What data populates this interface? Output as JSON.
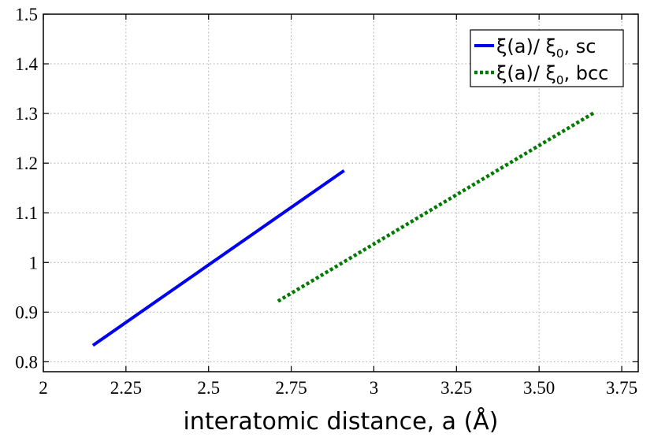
{
  "chart_data": {
    "type": "line",
    "xlabel": "interatomic distance, a (Å)",
    "ylabel": "",
    "xlim": [
      2,
      3.8
    ],
    "ylim": [
      0.78,
      1.5
    ],
    "x_ticks": [
      2,
      2.25,
      2.5,
      2.75,
      3,
      3.25,
      3.5,
      3.75
    ],
    "x_tick_labels": [
      "2",
      "2.25",
      "2.5",
      "2.75",
      "3",
      "3.25",
      "3.50",
      "3.75"
    ],
    "y_ticks": [
      0.8,
      0.9,
      1.0,
      1.1,
      1.2,
      1.3,
      1.4,
      1.5
    ],
    "y_tick_labels": [
      "0.8",
      "0.9",
      "1",
      "1.1",
      "1.2",
      "1.3",
      "1.4",
      "1.5"
    ],
    "grid": true,
    "legend_position": "top-right",
    "series": [
      {
        "name": "ξ(a)/ ξ0, sc",
        "legend_main": "ξ(a)/ ξ",
        "legend_sub": "0",
        "legend_tail": ", sc",
        "color": "#0000ee",
        "style": "solid",
        "x": [
          2.15,
          2.91
        ],
        "y": [
          0.833,
          1.185
        ]
      },
      {
        "name": "ξ(a)/ ξ0, bcc",
        "legend_main": "ξ(a)/ ξ",
        "legend_sub": "0",
        "legend_tail": ", bcc",
        "color": "#007a00",
        "style": "dotted",
        "x": [
          2.71,
          3.67
        ],
        "y": [
          0.922,
          1.303
        ]
      }
    ]
  }
}
